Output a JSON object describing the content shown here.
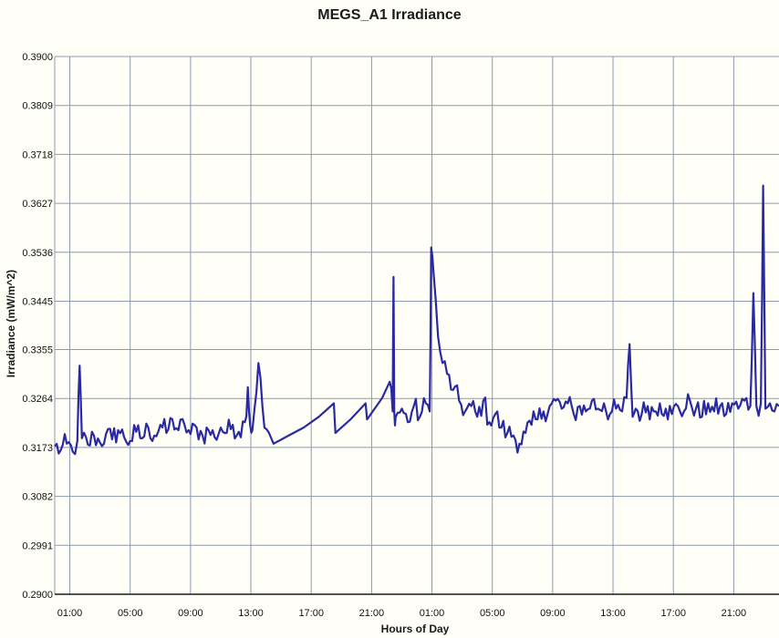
{
  "chart_data": {
    "type": "line",
    "title": "MEGS_A1 Irradiance",
    "xlabel": "Hours of Day",
    "ylabel": "Irradiance (mW/m^2)",
    "ylim": [
      0.29,
      0.39
    ],
    "xlim_hours": [
      0,
      48
    ],
    "y_ticks": [
      "0.2900",
      "0.2991",
      "0.3082",
      "0.3173",
      "0.3264",
      "0.3355",
      "0.3445",
      "0.3536",
      "0.3627",
      "0.3718",
      "0.3809",
      "0.3900"
    ],
    "x_ticks": [
      {
        "label": "01:00",
        "hour": 1
      },
      {
        "label": "05:00",
        "hour": 5
      },
      {
        "label": "09:00",
        "hour": 9
      },
      {
        "label": "13:00",
        "hour": 13
      },
      {
        "label": "17:00",
        "hour": 17
      },
      {
        "label": "21:00",
        "hour": 21
      },
      {
        "label": "01:00",
        "hour": 25
      },
      {
        "label": "05:00",
        "hour": 29
      },
      {
        "label": "09:00",
        "hour": 33
      },
      {
        "label": "13:00",
        "hour": 37
      },
      {
        "label": "17:00",
        "hour": 41
      },
      {
        "label": "21:00",
        "hour": 45
      }
    ],
    "grid": true,
    "colors": {
      "line": "#2a2aa0",
      "grid": "#8c9aab",
      "axis": "#1a1a1a"
    },
    "series": [
      {
        "x": [
          0.0,
          0.4,
          0.8,
          1.2,
          1.5,
          1.65,
          1.8,
          2.2,
          2.6,
          3.0,
          3.4,
          3.8,
          4.2,
          4.6,
          5.0,
          5.4,
          5.8,
          6.2,
          6.6,
          7.0,
          7.4,
          7.8,
          8.2,
          8.6,
          9.0,
          9.4,
          9.8,
          10.2,
          10.6,
          11.0,
          11.4,
          11.8,
          12.2,
          12.6,
          12.8,
          12.95,
          13.1,
          13.5,
          13.9,
          14.2,
          14.5,
          15.5,
          16.5,
          17.5,
          18.5,
          18.6,
          19.6,
          20.6,
          20.7,
          21.7,
          22.2,
          22.4,
          22.45,
          22.5,
          22.6,
          23.0,
          23.4,
          23.8,
          24.2,
          24.6,
          24.85,
          24.95,
          25.1,
          25.4,
          25.7,
          26.0,
          26.4,
          26.8,
          27.2,
          27.6,
          28.0,
          28.4,
          28.8,
          29.2,
          29.6,
          30.0,
          30.4,
          30.8,
          31.2,
          31.6,
          32.0,
          32.4,
          32.8,
          33.2,
          33.6,
          34.0,
          34.4,
          34.8,
          35.2,
          35.6,
          36.0,
          36.4,
          36.8,
          37.2,
          37.6,
          37.9,
          38.1,
          38.3,
          38.5,
          38.9,
          39.3,
          39.7,
          40.1,
          40.5,
          40.9,
          41.3,
          41.7,
          42.1,
          42.5,
          42.9,
          43.3,
          43.7,
          44.1,
          44.5,
          44.9,
          45.3,
          45.7,
          46.1,
          46.3,
          46.5,
          46.8,
          46.95,
          47.1,
          47.4,
          47.7,
          48.0
        ],
        "y": [
          0.3175,
          0.3168,
          0.318,
          0.3165,
          0.3185,
          0.3325,
          0.319,
          0.3178,
          0.3195,
          0.3182,
          0.3198,
          0.3188,
          0.3205,
          0.3192,
          0.3185,
          0.3202,
          0.319,
          0.321,
          0.3195,
          0.3215,
          0.32,
          0.3225,
          0.3205,
          0.3215,
          0.3198,
          0.321,
          0.3195,
          0.3205,
          0.3192,
          0.321,
          0.32,
          0.3215,
          0.3202,
          0.322,
          0.3285,
          0.3215,
          0.3205,
          0.333,
          0.321,
          0.32,
          0.318,
          0.3195,
          0.321,
          0.323,
          0.3255,
          0.32,
          0.3225,
          0.3255,
          0.3225,
          0.3265,
          0.3295,
          0.324,
          0.349,
          0.324,
          0.323,
          0.3245,
          0.322,
          0.325,
          0.323,
          0.3255,
          0.324,
          0.3545,
          0.35,
          0.338,
          0.333,
          0.331,
          0.328,
          0.326,
          0.324,
          0.325,
          0.323,
          0.326,
          0.322,
          0.3235,
          0.321,
          0.32,
          0.3195,
          0.318,
          0.32,
          0.3215,
          0.3225,
          0.324,
          0.325,
          0.326,
          0.3245,
          0.3255,
          0.3235,
          0.325,
          0.324,
          0.326,
          0.3245,
          0.3255,
          0.3235,
          0.3245,
          0.324,
          0.3265,
          0.3365,
          0.323,
          0.3245,
          0.3235,
          0.325,
          0.324,
          0.3255,
          0.3245,
          0.3235,
          0.325,
          0.324,
          0.326,
          0.3245,
          0.323,
          0.3255,
          0.324,
          0.325,
          0.3235,
          0.3255,
          0.3245,
          0.326,
          0.325,
          0.346,
          0.325,
          0.3255,
          0.366,
          0.3245,
          0.3255,
          0.324,
          0.325
        ]
      }
    ]
  }
}
